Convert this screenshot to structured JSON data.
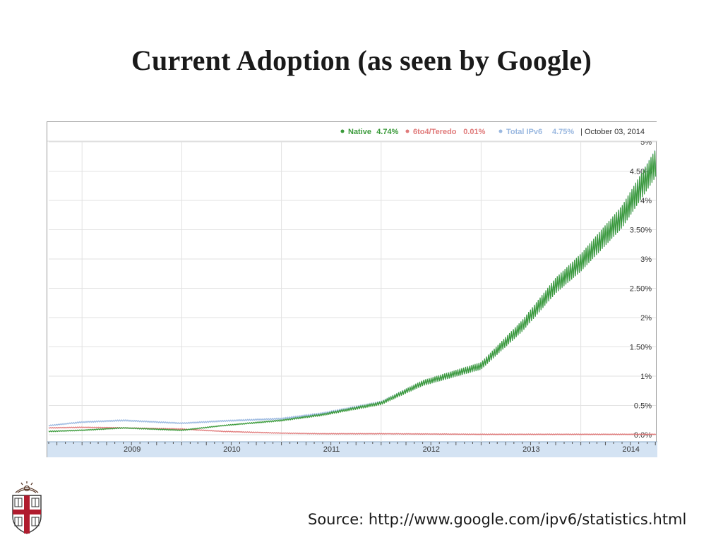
{
  "slide": {
    "title": "Current Adoption (as seen by Google)",
    "source": "Source: http://www.google.com/ipv6/statistics.html"
  },
  "colors": {
    "native": "#3a9a3a",
    "teredo": "#e07a7a",
    "total": "#9ab8e0",
    "grid": "#e2e2e2",
    "axis_band": "#d4e3f3"
  },
  "chart_data": {
    "type": "line",
    "title": "",
    "xlabel": "",
    "ylabel": "",
    "legend_position": "top-right",
    "date_label": "October 03, 2014",
    "grid": true,
    "x_range": [
      "2008-09",
      "2014-10-03"
    ],
    "ylim": [
      0,
      5
    ],
    "y_ticks": [
      {
        "value": 0,
        "label": "0.0%"
      },
      {
        "value": 0.5,
        "label": "0.5%"
      },
      {
        "value": 1,
        "label": "1%"
      },
      {
        "value": 1.5,
        "label": "1.50%"
      },
      {
        "value": 2,
        "label": "2%"
      },
      {
        "value": 2.5,
        "label": "2.50%"
      },
      {
        "value": 3,
        "label": "3%"
      },
      {
        "value": 3.5,
        "label": "3.50%"
      },
      {
        "value": 4,
        "label": "4%"
      },
      {
        "value": 4.5,
        "label": "4.50%"
      },
      {
        "value": 5,
        "label": "5%"
      }
    ],
    "x_ticks": [
      {
        "date": "2009-01-01",
        "label": "2009"
      },
      {
        "date": "2010-01-01",
        "label": "2010"
      },
      {
        "date": "2011-01-01",
        "label": "2011"
      },
      {
        "date": "2012-01-01",
        "label": "2012"
      },
      {
        "date": "2013-01-01",
        "label": "2013"
      },
      {
        "date": "2014-01-01",
        "label": "2014"
      }
    ],
    "series": [
      {
        "name": "Native",
        "legend_value": "4.74%",
        "color_key": "native",
        "points": [
          [
            "2008-09-01",
            0.06
          ],
          [
            "2009-01-01",
            0.08
          ],
          [
            "2009-06-01",
            0.12
          ],
          [
            "2010-01-01",
            0.08
          ],
          [
            "2010-06-01",
            0.16
          ],
          [
            "2011-01-01",
            0.25
          ],
          [
            "2011-06-01",
            0.35
          ],
          [
            "2012-01-01",
            0.55
          ],
          [
            "2012-06-01",
            0.9
          ],
          [
            "2013-01-01",
            1.2
          ],
          [
            "2013-06-01",
            1.9
          ],
          [
            "2013-10-01",
            2.6
          ],
          [
            "2014-01-01",
            3.0
          ],
          [
            "2014-06-01",
            3.8
          ],
          [
            "2014-10-03",
            4.74
          ]
        ]
      },
      {
        "name": "6to4/Teredo",
        "legend_value": "0.01%",
        "color_key": "teredo",
        "points": [
          [
            "2008-09-01",
            0.12
          ],
          [
            "2009-01-01",
            0.13
          ],
          [
            "2009-06-01",
            0.12
          ],
          [
            "2010-01-01",
            0.1
          ],
          [
            "2010-06-01",
            0.06
          ],
          [
            "2011-01-01",
            0.03
          ],
          [
            "2011-06-01",
            0.02
          ],
          [
            "2012-01-01",
            0.02
          ],
          [
            "2013-01-01",
            0.01
          ],
          [
            "2014-10-03",
            0.01
          ]
        ]
      },
      {
        "name": "Total IPv6",
        "legend_value": "4.75%",
        "color_key": "total",
        "points": [
          [
            "2008-09-01",
            0.16
          ],
          [
            "2009-01-01",
            0.22
          ],
          [
            "2009-06-01",
            0.25
          ],
          [
            "2010-01-01",
            0.2
          ],
          [
            "2010-06-01",
            0.24
          ],
          [
            "2011-01-01",
            0.28
          ],
          [
            "2011-06-01",
            0.37
          ],
          [
            "2012-01-01",
            0.56
          ],
          [
            "2012-06-01",
            0.9
          ],
          [
            "2013-01-01",
            1.2
          ],
          [
            "2013-06-01",
            1.9
          ],
          [
            "2013-10-01",
            2.6
          ],
          [
            "2014-01-01",
            3.0
          ],
          [
            "2014-06-01",
            3.8
          ],
          [
            "2014-10-03",
            4.75
          ]
        ]
      }
    ]
  }
}
